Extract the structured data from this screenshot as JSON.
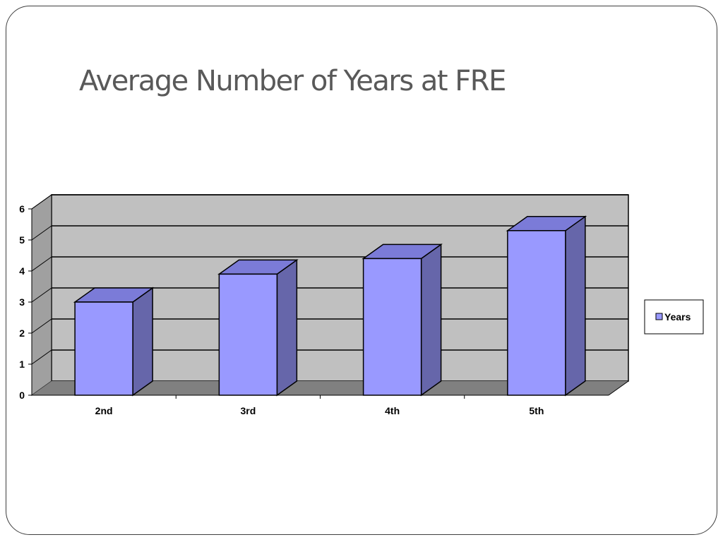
{
  "slide": {
    "title": "Average Number of Years at FRE"
  },
  "chart_data": {
    "type": "bar",
    "categories": [
      "2nd",
      "3rd",
      "4th",
      "5th"
    ],
    "series": [
      {
        "name": "Years",
        "values": [
          3,
          3.9,
          4.4,
          5.3
        ]
      }
    ],
    "xlabel": "",
    "ylabel": "",
    "ylim": [
      0,
      6
    ],
    "yticks": [
      "0",
      "1",
      "2",
      "3",
      "4",
      "5",
      "6"
    ],
    "grid": true,
    "legend": "right",
    "style": "3d-column",
    "colors": {
      "bar_front": "#9999ff",
      "bar_side": "#6666aa",
      "bar_top": "#7b7bd8",
      "back_wall": "#c0c0c0",
      "side_wall": "#a0a0a0",
      "floor": "#808080",
      "outline": "#000000"
    }
  }
}
